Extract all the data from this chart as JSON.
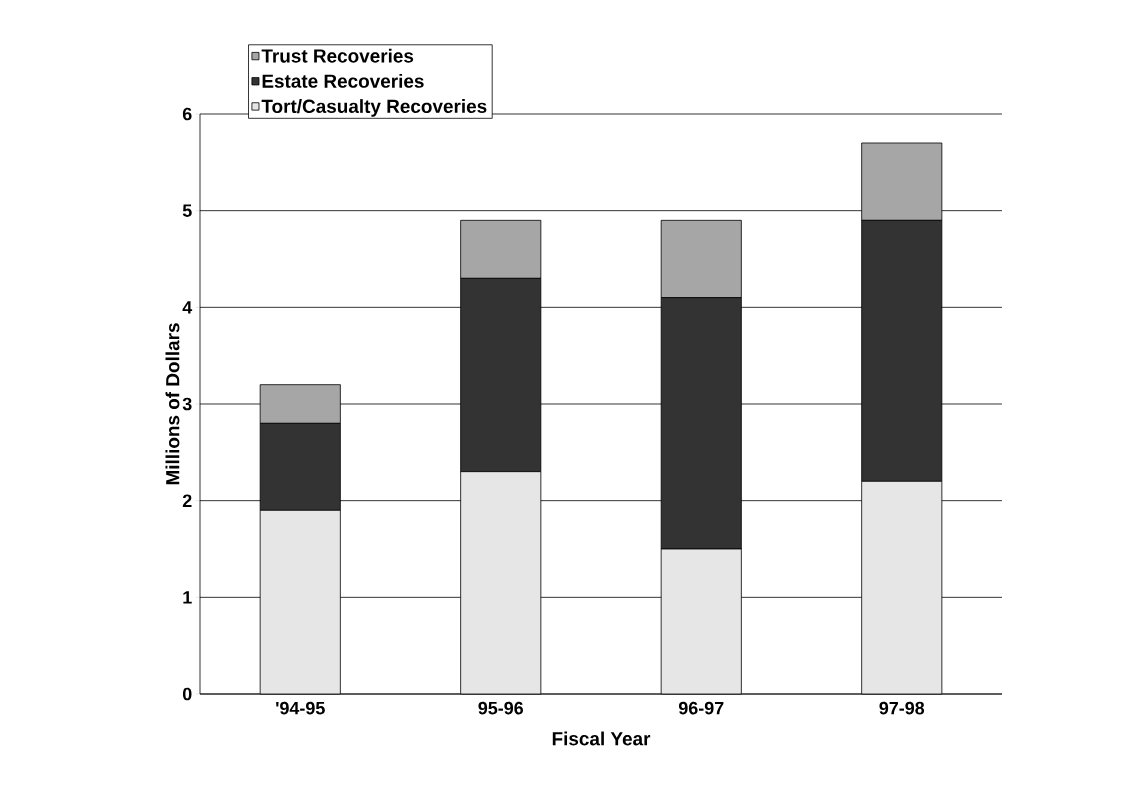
{
  "chart_data": {
    "type": "bar",
    "stacked": true,
    "xlabel": "Fiscal Year",
    "ylabel": "Millions of Dollars",
    "categories": [
      "'94-95",
      "95-96",
      "96-97",
      "97-98"
    ],
    "series": [
      {
        "name": "Tort/Casualty Recoveries",
        "color": "#e6e6e6",
        "values": [
          1.9,
          2.3,
          1.5,
          2.2
        ]
      },
      {
        "name": "Estate Recoveries",
        "color": "#333333",
        "values": [
          0.9,
          2.0,
          2.6,
          2.7
        ]
      },
      {
        "name": "Trust Recoveries",
        "color": "#a6a6a6",
        "values": [
          0.4,
          0.6,
          0.8,
          0.8
        ]
      }
    ],
    "ylim": [
      0,
      6
    ],
    "yticks": [
      0,
      1,
      2,
      3,
      4,
      5,
      6
    ],
    "grid": "y",
    "legend": "top left"
  }
}
